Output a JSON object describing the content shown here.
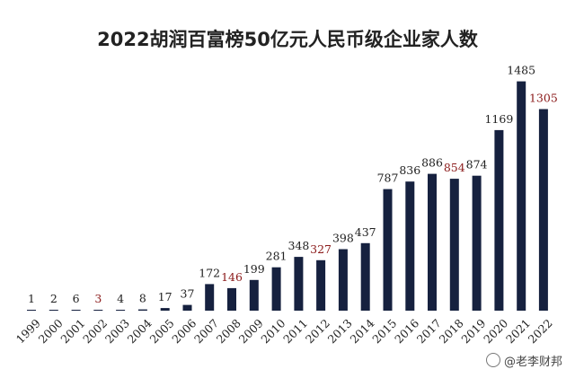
{
  "chart_data": {
    "type": "bar",
    "title": "2022胡润百富榜50亿元人民币级企业家人数",
    "categories": [
      "1999",
      "2000",
      "2001",
      "2002",
      "2003",
      "2004",
      "2005",
      "2006",
      "2007",
      "2008",
      "2009",
      "2010",
      "2011",
      "2012",
      "2013",
      "2014",
      "2015",
      "2016",
      "2017",
      "2018",
      "2019",
      "2020",
      "2021",
      "2022"
    ],
    "values": [
      1,
      2,
      6,
      3,
      4,
      8,
      17,
      37,
      172,
      146,
      199,
      281,
      348,
      327,
      398,
      437,
      787,
      836,
      886,
      854,
      874,
      1169,
      1485,
      1305
    ],
    "highlight_labels": [
      "2002",
      "2008",
      "2012",
      "2018",
      "2022"
    ],
    "ylim": [
      0,
      1500
    ],
    "grid": false,
    "legend": "none",
    "colors": {
      "bar": "#16213f",
      "label": "#222222",
      "highlight": "#8b1a1a"
    }
  },
  "watermark": {
    "text": "@老李财邦"
  }
}
